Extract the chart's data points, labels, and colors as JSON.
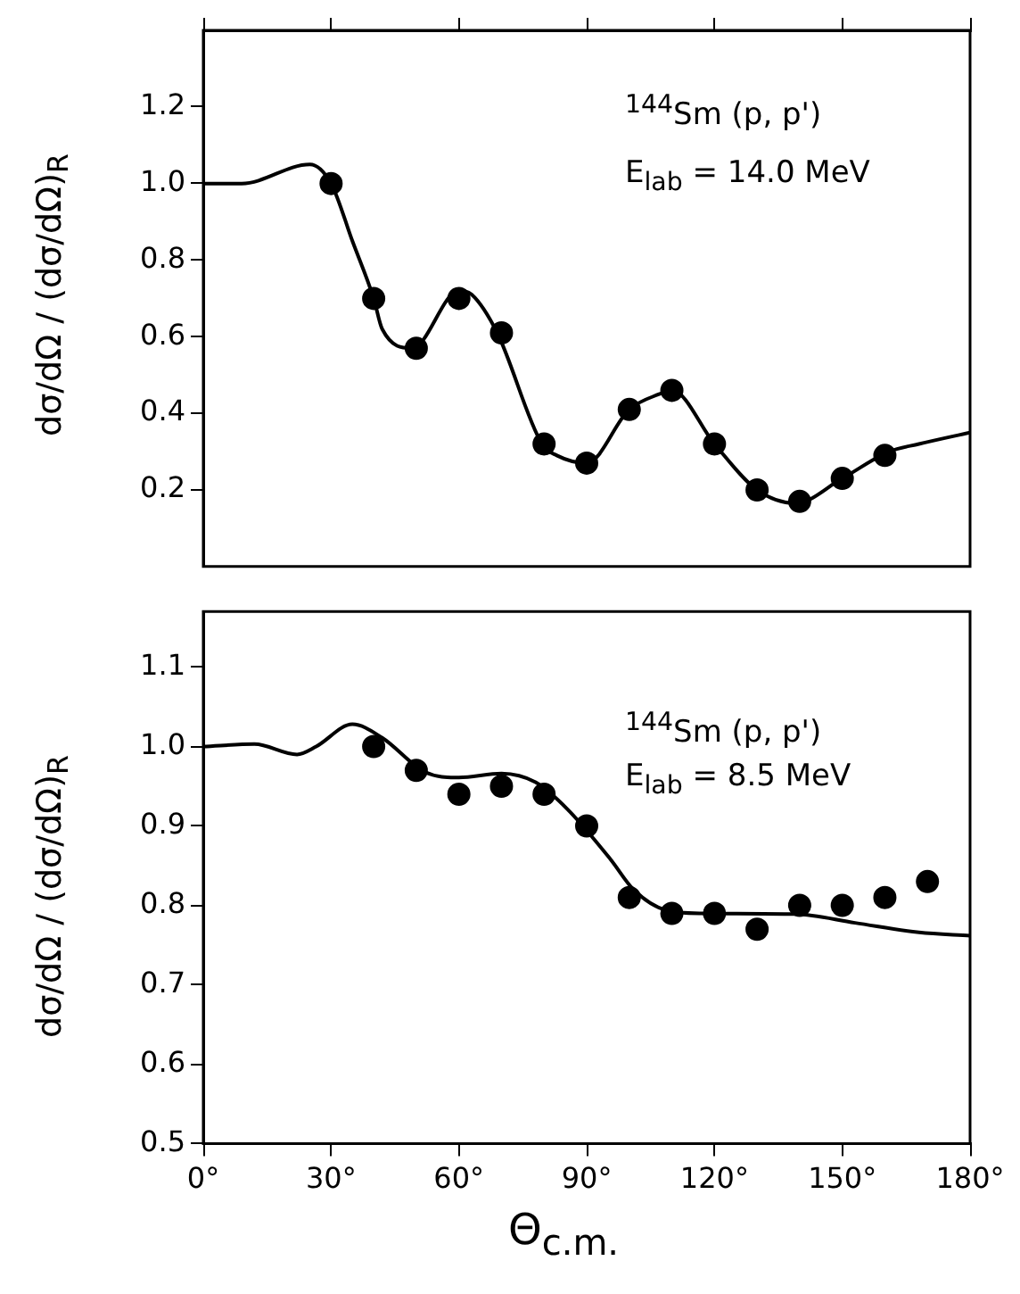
{
  "chart_data": [
    {
      "type": "line",
      "ylabel": "dσ/dΩ / (dσ/dΩ)$_{R}$",
      "annotations": [
        "$^{144}$Sm (p, p')",
        "E$_{lab}$ = 14.0 MeV"
      ],
      "xlim": [
        0,
        180
      ],
      "xticks": [
        {
          "value": 0,
          "label": null
        },
        {
          "value": 30,
          "label": null
        },
        {
          "value": 60,
          "label": null
        },
        {
          "value": 90,
          "label": null
        },
        {
          "value": 120,
          "label": null
        },
        {
          "value": 150,
          "label": null
        },
        {
          "value": 180,
          "label": null
        }
      ],
      "ylim": [
        0,
        1.4
      ],
      "yticks": [
        0.2,
        0.4,
        0.6,
        0.8,
        {
          "value": 1,
          "label": "1.0"
        },
        1.2
      ],
      "tick_labels": "y",
      "grid": false,
      "legend": false,
      "series": [
        {
          "color": "#000000",
          "marker": "none",
          "x": [
            0,
            9,
            25,
            30,
            35,
            40,
            42,
            49,
            60,
            63,
            69,
            79.5,
            83,
            90,
            100,
            107,
            110,
            120,
            130,
            139,
            150,
            161,
            168,
            180
          ],
          "values": [
            1.0,
            1.0,
            1.05,
            1.0,
            0.85,
            0.7,
            0.62,
            0.57,
            0.72,
            0.71,
            0.61,
            0.32,
            0.29,
            0.27,
            0.41,
            0.45,
            0.46,
            0.32,
            0.2,
            0.165,
            0.23,
            0.3,
            0.32,
            0.35
          ]
        },
        {
          "type": "scatter",
          "color": "#000000",
          "marker": "circle",
          "x": [
            30,
            40,
            50,
            60,
            70,
            80,
            90,
            100,
            110,
            120,
            130,
            140,
            150,
            160
          ],
          "values": [
            1.0,
            0.7,
            0.57,
            0.7,
            0.61,
            0.32,
            0.27,
            0.41,
            0.46,
            0.32,
            0.2,
            0.17,
            0.23,
            0.29
          ]
        }
      ]
    },
    {
      "type": "line",
      "ylabel": "dσ/dΩ / (dσ/dΩ)$_{R}$",
      "xlabel": "Θ$_{c.m.}$",
      "annotations": [
        "$^{144}$Sm (p, p')",
        "E$_{lab}$ = 8.5 MeV"
      ],
      "xlim": [
        0,
        180
      ],
      "xticks": [
        {
          "value": 0,
          "label": "0°"
        },
        {
          "value": 30,
          "label": "30°"
        },
        {
          "value": 60,
          "label": "60°"
        },
        {
          "value": 90,
          "label": "90°"
        },
        {
          "value": 120,
          "label": "120°"
        },
        {
          "value": 150,
          "label": "150°"
        },
        {
          "value": 180,
          "label": "180°"
        }
      ],
      "ylim": [
        0.5,
        1.17
      ],
      "yticks": [
        0.5,
        0.6,
        0.7,
        0.8,
        0.9,
        {
          "value": 1,
          "label": "1.0"
        },
        1.1
      ],
      "grid": false,
      "legend": false,
      "series": [
        {
          "color": "#000000",
          "marker": "none",
          "x": [
            0,
            12,
            22,
            26.5,
            35,
            42,
            52,
            60,
            70,
            78,
            85.5,
            95.6,
            101,
            108.6,
            117,
            139,
            153,
            168,
            180
          ],
          "values": [
            1.0,
            1.003,
            0.99,
            1.0,
            1.028,
            1.011,
            0.968,
            0.961,
            0.966,
            0.955,
            0.921,
            0.858,
            0.82,
            0.794,
            0.79,
            0.789,
            0.778,
            0.766,
            0.762
          ]
        },
        {
          "type": "scatter",
          "color": "#000000",
          "marker": "circle",
          "x": [
            40,
            50,
            60,
            70,
            80,
            90,
            100,
            110,
            120,
            130,
            140,
            150,
            160,
            170
          ],
          "values": [
            1.0,
            0.97,
            0.94,
            0.95,
            0.94,
            0.9,
            0.81,
            0.79,
            0.79,
            0.77,
            0.8,
            0.8,
            0.81,
            0.83
          ],
          "errors": [
            0.01,
            0.01,
            0.01,
            0.01,
            0.01,
            0.01,
            0.01,
            0.01,
            0.01,
            0.01,
            0.01,
            0.01,
            0.01,
            0.01
          ]
        }
      ]
    }
  ]
}
